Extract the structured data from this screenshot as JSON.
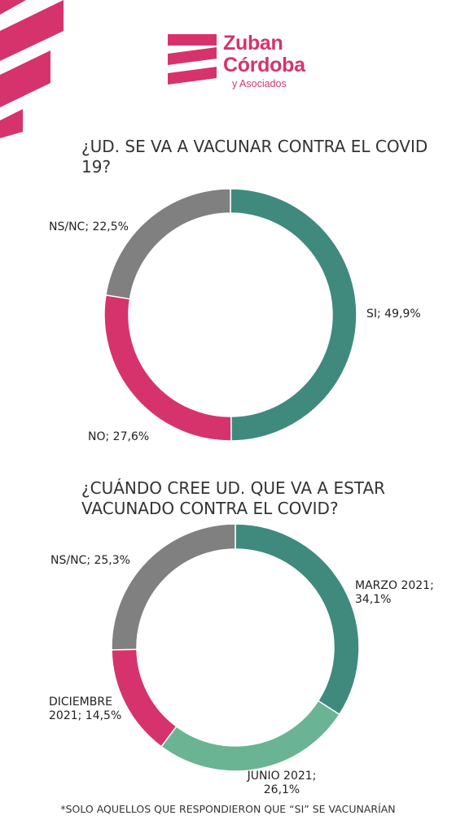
{
  "brand": {
    "name_line1": "Zuban",
    "name_line2": "Córdoba",
    "subtitle": "y Asociados"
  },
  "colors": {
    "brand": "#d6336c",
    "teal": "#3f8a7d",
    "light_green": "#6bb493",
    "magenta": "#d6336c",
    "gray": "#808080"
  },
  "chart_data": [
    {
      "type": "pie",
      "title": "¿UD. SE VA A VACUNAR CONTRA EL COVID 19?",
      "slices": [
        {
          "category": "SI",
          "value": 49.9,
          "label": "SI; 49,9%",
          "color": "#3f8a7d"
        },
        {
          "category": "NO",
          "value": 27.6,
          "label": "NO; 27,6%",
          "color": "#d6336c"
        },
        {
          "category": "NS/NC",
          "value": 22.5,
          "label": "NS/NC; 22,5%",
          "color": "#808080"
        }
      ]
    },
    {
      "type": "pie",
      "title": "¿CUÁNDO CREE UD. QUE VA A ESTAR VACUNADO CONTRA EL COVID?",
      "slices": [
        {
          "category": "MARZO 2021",
          "value": 34.1,
          "label": "MARZO 2021; 34,1%",
          "color": "#3f8a7d"
        },
        {
          "category": "JUNIO 2021",
          "value": 26.1,
          "label": "JUNIO 2021; 26,1%",
          "color": "#6bb493"
        },
        {
          "category": "DICIEMBRE 2021",
          "value": 14.5,
          "label": "DICIEMBRE 2021; 14,5%",
          "color": "#d6336c"
        },
        {
          "category": "NS/NC",
          "value": 25.3,
          "label": "NS/NC; 25,3%",
          "color": "#808080"
        }
      ]
    }
  ],
  "footnote": "*SOLO AQUELLOS QUE RESPONDIERON QUE “SI” SE VACUNARÍAN"
}
